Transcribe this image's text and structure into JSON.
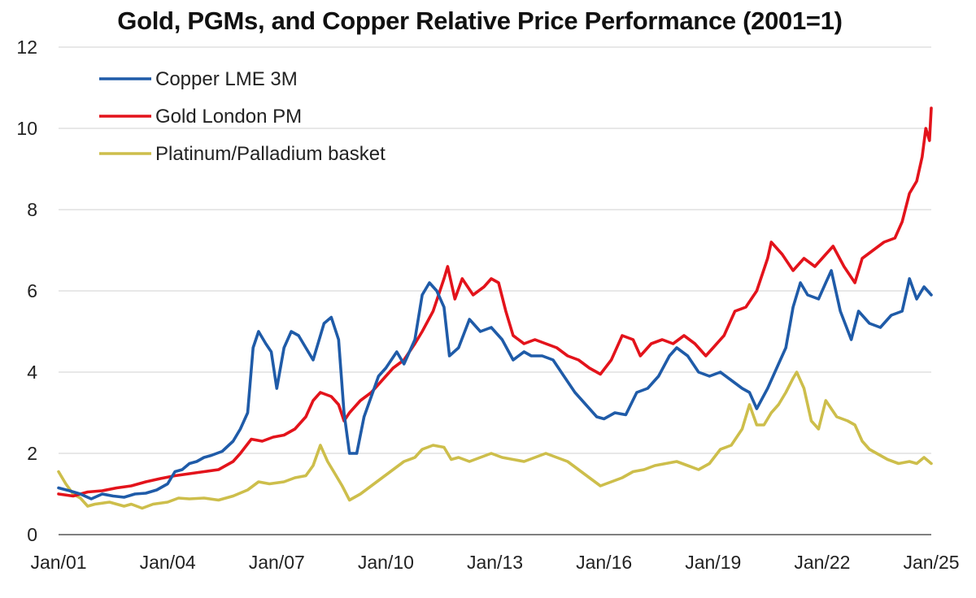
{
  "chart_data": {
    "type": "line",
    "title": "Gold, PGMs, and Copper Relative Price Performance (2001=1)",
    "xlabel": "",
    "ylabel": "",
    "ylim": [
      0,
      12
    ],
    "xlim": [
      2001.0,
      2025.0
    ],
    "yticks": [
      "0",
      "2",
      "4",
      "6",
      "8",
      "10",
      "12"
    ],
    "xtick_labels": [
      "Jan/01",
      "Jan/04",
      "Jan/07",
      "Jan/10",
      "Jan/13",
      "Jan/16",
      "Jan/19",
      "Jan/22",
      "Jan/25"
    ],
    "xtick_years": [
      2001,
      2004,
      2007,
      2010,
      2013,
      2016,
      2019,
      2022,
      2025
    ],
    "grid": "horizontal",
    "legend_position": "top-left",
    "colors": {
      "copper": "#1F5BA8",
      "gold": "#E3131B",
      "pgm": "#CDBE4B",
      "grid": "#d9d9d9",
      "axis": "#7f7f7f"
    },
    "series": [
      {
        "name": "Copper LME 3M",
        "color": "#1F5BA8",
        "points": [
          [
            2001.0,
            1.15
          ],
          [
            2001.3,
            1.08
          ],
          [
            2001.6,
            1.0
          ],
          [
            2001.9,
            0.88
          ],
          [
            2002.2,
            1.0
          ],
          [
            2002.5,
            0.95
          ],
          [
            2002.8,
            0.92
          ],
          [
            2003.1,
            1.0
          ],
          [
            2003.4,
            1.02
          ],
          [
            2003.7,
            1.1
          ],
          [
            2004.0,
            1.25
          ],
          [
            2004.2,
            1.55
          ],
          [
            2004.4,
            1.6
          ],
          [
            2004.6,
            1.75
          ],
          [
            2004.8,
            1.8
          ],
          [
            2005.0,
            1.9
          ],
          [
            2005.2,
            1.95
          ],
          [
            2005.5,
            2.05
          ],
          [
            2005.8,
            2.3
          ],
          [
            2006.0,
            2.6
          ],
          [
            2006.2,
            3.0
          ],
          [
            2006.35,
            4.6
          ],
          [
            2006.5,
            5.0
          ],
          [
            2006.7,
            4.7
          ],
          [
            2006.85,
            4.5
          ],
          [
            2007.0,
            3.6
          ],
          [
            2007.2,
            4.6
          ],
          [
            2007.4,
            5.0
          ],
          [
            2007.6,
            4.9
          ],
          [
            2007.8,
            4.6
          ],
          [
            2008.0,
            4.3
          ],
          [
            2008.3,
            5.2
          ],
          [
            2008.5,
            5.35
          ],
          [
            2008.7,
            4.8
          ],
          [
            2008.85,
            3.0
          ],
          [
            2009.0,
            2.0
          ],
          [
            2009.2,
            2.0
          ],
          [
            2009.4,
            2.9
          ],
          [
            2009.6,
            3.4
          ],
          [
            2009.8,
            3.9
          ],
          [
            2010.0,
            4.1
          ],
          [
            2010.3,
            4.5
          ],
          [
            2010.5,
            4.2
          ],
          [
            2010.8,
            4.8
          ],
          [
            2011.0,
            5.9
          ],
          [
            2011.2,
            6.2
          ],
          [
            2011.4,
            6.0
          ],
          [
            2011.6,
            5.6
          ],
          [
            2011.75,
            4.4
          ],
          [
            2012.0,
            4.6
          ],
          [
            2012.3,
            5.3
          ],
          [
            2012.6,
            5.0
          ],
          [
            2012.9,
            5.1
          ],
          [
            2013.2,
            4.8
          ],
          [
            2013.5,
            4.3
          ],
          [
            2013.8,
            4.5
          ],
          [
            2014.0,
            4.4
          ],
          [
            2014.3,
            4.4
          ],
          [
            2014.6,
            4.3
          ],
          [
            2014.9,
            3.9
          ],
          [
            2015.2,
            3.5
          ],
          [
            2015.5,
            3.2
          ],
          [
            2015.8,
            2.9
          ],
          [
            2016.0,
            2.85
          ],
          [
            2016.3,
            3.0
          ],
          [
            2016.6,
            2.95
          ],
          [
            2016.9,
            3.5
          ],
          [
            2017.2,
            3.6
          ],
          [
            2017.5,
            3.9
          ],
          [
            2017.8,
            4.4
          ],
          [
            2018.0,
            4.6
          ],
          [
            2018.3,
            4.4
          ],
          [
            2018.6,
            4.0
          ],
          [
            2018.9,
            3.9
          ],
          [
            2019.2,
            4.0
          ],
          [
            2019.5,
            3.8
          ],
          [
            2019.8,
            3.6
          ],
          [
            2020.0,
            3.5
          ],
          [
            2020.2,
            3.1
          ],
          [
            2020.5,
            3.6
          ],
          [
            2020.8,
            4.2
          ],
          [
            2021.0,
            4.6
          ],
          [
            2021.2,
            5.6
          ],
          [
            2021.4,
            6.2
          ],
          [
            2021.6,
            5.9
          ],
          [
            2021.9,
            5.8
          ],
          [
            2022.1,
            6.2
          ],
          [
            2022.25,
            6.5
          ],
          [
            2022.5,
            5.5
          ],
          [
            2022.8,
            4.8
          ],
          [
            2023.0,
            5.5
          ],
          [
            2023.3,
            5.2
          ],
          [
            2023.6,
            5.1
          ],
          [
            2023.9,
            5.4
          ],
          [
            2024.2,
            5.5
          ],
          [
            2024.4,
            6.3
          ],
          [
            2024.6,
            5.8
          ],
          [
            2024.8,
            6.1
          ],
          [
            2025.0,
            5.9
          ]
        ]
      },
      {
        "name": "Gold London PM",
        "color": "#E3131B",
        "points": [
          [
            2001.0,
            1.0
          ],
          [
            2001.4,
            0.95
          ],
          [
            2001.8,
            1.05
          ],
          [
            2002.2,
            1.08
          ],
          [
            2002.6,
            1.15
          ],
          [
            2003.0,
            1.2
          ],
          [
            2003.4,
            1.3
          ],
          [
            2003.8,
            1.38
          ],
          [
            2004.2,
            1.45
          ],
          [
            2004.6,
            1.5
          ],
          [
            2005.0,
            1.55
          ],
          [
            2005.4,
            1.6
          ],
          [
            2005.8,
            1.8
          ],
          [
            2006.0,
            2.0
          ],
          [
            2006.3,
            2.35
          ],
          [
            2006.6,
            2.3
          ],
          [
            2006.9,
            2.4
          ],
          [
            2007.2,
            2.45
          ],
          [
            2007.5,
            2.6
          ],
          [
            2007.8,
            2.9
          ],
          [
            2008.0,
            3.3
          ],
          [
            2008.2,
            3.5
          ],
          [
            2008.5,
            3.4
          ],
          [
            2008.7,
            3.2
          ],
          [
            2008.85,
            2.8
          ],
          [
            2009.0,
            3.0
          ],
          [
            2009.3,
            3.3
          ],
          [
            2009.6,
            3.5
          ],
          [
            2009.9,
            3.8
          ],
          [
            2010.2,
            4.1
          ],
          [
            2010.5,
            4.3
          ],
          [
            2010.8,
            4.7
          ],
          [
            2011.0,
            5.0
          ],
          [
            2011.3,
            5.5
          ],
          [
            2011.6,
            6.3
          ],
          [
            2011.7,
            6.6
          ],
          [
            2011.9,
            5.8
          ],
          [
            2012.1,
            6.3
          ],
          [
            2012.4,
            5.9
          ],
          [
            2012.7,
            6.1
          ],
          [
            2012.9,
            6.3
          ],
          [
            2013.1,
            6.2
          ],
          [
            2013.3,
            5.5
          ],
          [
            2013.5,
            4.9
          ],
          [
            2013.8,
            4.7
          ],
          [
            2014.1,
            4.8
          ],
          [
            2014.4,
            4.7
          ],
          [
            2014.7,
            4.6
          ],
          [
            2015.0,
            4.4
          ],
          [
            2015.3,
            4.3
          ],
          [
            2015.6,
            4.1
          ],
          [
            2015.9,
            3.95
          ],
          [
            2016.2,
            4.3
          ],
          [
            2016.5,
            4.9
          ],
          [
            2016.8,
            4.8
          ],
          [
            2017.0,
            4.4
          ],
          [
            2017.3,
            4.7
          ],
          [
            2017.6,
            4.8
          ],
          [
            2017.9,
            4.7
          ],
          [
            2018.2,
            4.9
          ],
          [
            2018.5,
            4.7
          ],
          [
            2018.8,
            4.4
          ],
          [
            2019.0,
            4.6
          ],
          [
            2019.3,
            4.9
          ],
          [
            2019.6,
            5.5
          ],
          [
            2019.9,
            5.6
          ],
          [
            2020.2,
            6.0
          ],
          [
            2020.5,
            6.8
          ],
          [
            2020.6,
            7.2
          ],
          [
            2020.9,
            6.9
          ],
          [
            2021.2,
            6.5
          ],
          [
            2021.5,
            6.8
          ],
          [
            2021.8,
            6.6
          ],
          [
            2022.1,
            6.9
          ],
          [
            2022.3,
            7.1
          ],
          [
            2022.6,
            6.6
          ],
          [
            2022.9,
            6.2
          ],
          [
            2023.1,
            6.8
          ],
          [
            2023.4,
            7.0
          ],
          [
            2023.7,
            7.2
          ],
          [
            2024.0,
            7.3
          ],
          [
            2024.2,
            7.7
          ],
          [
            2024.4,
            8.4
          ],
          [
            2024.6,
            8.7
          ],
          [
            2024.75,
            9.3
          ],
          [
            2024.85,
            10.0
          ],
          [
            2024.95,
            9.7
          ],
          [
            2025.0,
            10.5
          ]
        ]
      },
      {
        "name": "Platinum/Palladium basket",
        "color": "#CDBE4B",
        "points": [
          [
            2001.0,
            1.55
          ],
          [
            2001.2,
            1.25
          ],
          [
            2001.4,
            1.0
          ],
          [
            2001.6,
            0.9
          ],
          [
            2001.8,
            0.7
          ],
          [
            2002.0,
            0.75
          ],
          [
            2002.4,
            0.8
          ],
          [
            2002.8,
            0.7
          ],
          [
            2003.0,
            0.75
          ],
          [
            2003.3,
            0.65
          ],
          [
            2003.6,
            0.75
          ],
          [
            2004.0,
            0.8
          ],
          [
            2004.3,
            0.9
          ],
          [
            2004.6,
            0.88
          ],
          [
            2005.0,
            0.9
          ],
          [
            2005.4,
            0.85
          ],
          [
            2005.8,
            0.95
          ],
          [
            2006.2,
            1.1
          ],
          [
            2006.5,
            1.3
          ],
          [
            2006.8,
            1.25
          ],
          [
            2007.2,
            1.3
          ],
          [
            2007.5,
            1.4
          ],
          [
            2007.8,
            1.45
          ],
          [
            2008.0,
            1.7
          ],
          [
            2008.2,
            2.2
          ],
          [
            2008.4,
            1.8
          ],
          [
            2008.6,
            1.5
          ],
          [
            2008.8,
            1.2
          ],
          [
            2009.0,
            0.85
          ],
          [
            2009.3,
            1.0
          ],
          [
            2009.6,
            1.2
          ],
          [
            2009.9,
            1.4
          ],
          [
            2010.2,
            1.6
          ],
          [
            2010.5,
            1.8
          ],
          [
            2010.8,
            1.9
          ],
          [
            2011.0,
            2.1
          ],
          [
            2011.3,
            2.2
          ],
          [
            2011.6,
            2.15
          ],
          [
            2011.8,
            1.85
          ],
          [
            2012.0,
            1.9
          ],
          [
            2012.3,
            1.8
          ],
          [
            2012.6,
            1.9
          ],
          [
            2012.9,
            2.0
          ],
          [
            2013.2,
            1.9
          ],
          [
            2013.5,
            1.85
          ],
          [
            2013.8,
            1.8
          ],
          [
            2014.1,
            1.9
          ],
          [
            2014.4,
            2.0
          ],
          [
            2014.7,
            1.9
          ],
          [
            2015.0,
            1.8
          ],
          [
            2015.3,
            1.6
          ],
          [
            2015.6,
            1.4
          ],
          [
            2015.9,
            1.2
          ],
          [
            2016.2,
            1.3
          ],
          [
            2016.5,
            1.4
          ],
          [
            2016.8,
            1.55
          ],
          [
            2017.1,
            1.6
          ],
          [
            2017.4,
            1.7
          ],
          [
            2017.7,
            1.75
          ],
          [
            2018.0,
            1.8
          ],
          [
            2018.3,
            1.7
          ],
          [
            2018.6,
            1.6
          ],
          [
            2018.9,
            1.75
          ],
          [
            2019.2,
            2.1
          ],
          [
            2019.5,
            2.2
          ],
          [
            2019.8,
            2.6
          ],
          [
            2020.0,
            3.2
          ],
          [
            2020.2,
            2.7
          ],
          [
            2020.4,
            2.7
          ],
          [
            2020.6,
            3.0
          ],
          [
            2020.8,
            3.2
          ],
          [
            2021.0,
            3.5
          ],
          [
            2021.2,
            3.85
          ],
          [
            2021.3,
            4.0
          ],
          [
            2021.5,
            3.6
          ],
          [
            2021.7,
            2.8
          ],
          [
            2021.9,
            2.6
          ],
          [
            2022.1,
            3.3
          ],
          [
            2022.4,
            2.9
          ],
          [
            2022.7,
            2.8
          ],
          [
            2022.9,
            2.7
          ],
          [
            2023.1,
            2.3
          ],
          [
            2023.3,
            2.1
          ],
          [
            2023.5,
            2.0
          ],
          [
            2023.8,
            1.85
          ],
          [
            2024.1,
            1.75
          ],
          [
            2024.4,
            1.8
          ],
          [
            2024.6,
            1.75
          ],
          [
            2024.8,
            1.9
          ],
          [
            2025.0,
            1.75
          ]
        ]
      }
    ]
  }
}
